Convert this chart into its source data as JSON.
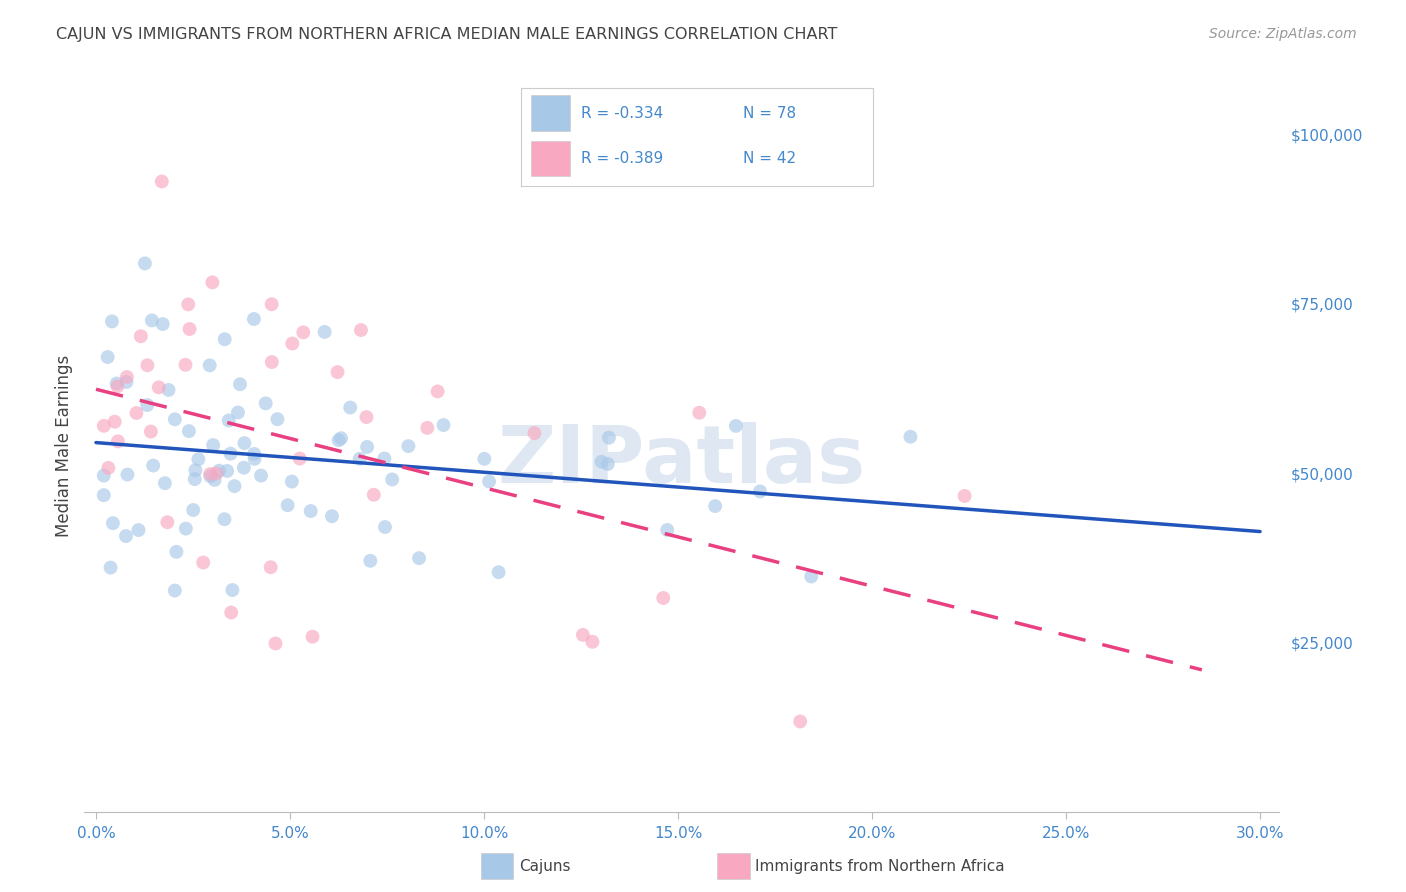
{
  "title": "CAJUN VS IMMIGRANTS FROM NORTHERN AFRICA MEDIAN MALE EARNINGS CORRELATION CHART",
  "source": "Source: ZipAtlas.com",
  "xlabel_vals": [
    0.0,
    0.05,
    0.1,
    0.15,
    0.2,
    0.25,
    0.3
  ],
  "xlabel_ticks": [
    "0.0%",
    "5.0%",
    "10.0%",
    "15.0%",
    "20.0%",
    "25.0%",
    "30.0%"
  ],
  "ylabel_ticks": [
    0,
    25000,
    50000,
    75000,
    100000
  ],
  "ylabel_labels": [
    "",
    "$25,000",
    "$50,000",
    "$75,000",
    "$100,000"
  ],
  "xlim": [
    -0.003,
    0.305
  ],
  "ylim": [
    0,
    108000
  ],
  "cajun_R": -0.334,
  "cajun_N": 78,
  "nafr_R": -0.389,
  "nafr_N": 42,
  "cajun_color": "#a8c8e8",
  "cajun_line_color": "#2255bb",
  "nafr_color": "#f8a8c0",
  "nafr_line_color": "#e84080",
  "watermark_text": "ZIPatlas",
  "background_color": "#ffffff",
  "grid_color": "#c8d8ec",
  "title_color": "#444444",
  "tick_color": "#4488cc",
  "ylabel_text": "Median Male Earnings",
  "legend_cajun_label": "Cajuns",
  "legend_nafr_label": "Immigrants from Northern Africa",
  "dot_size": 100,
  "dot_alpha": 0.65,
  "cajun_trend_intercept": 57000,
  "cajun_trend_slope": -75000,
  "nafr_trend_intercept": 60000,
  "nafr_trend_slope": -110000
}
